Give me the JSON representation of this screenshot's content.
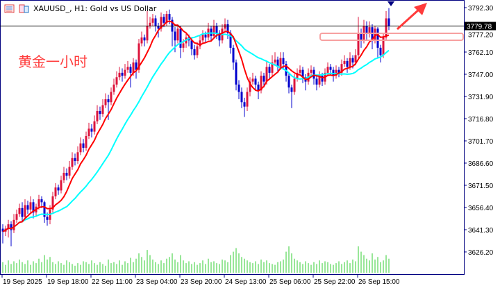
{
  "window": {
    "title": "XAUUSD_, H1:  Gold vs US Dollar",
    "icons": [
      "chart-list-icon",
      "chart-properties-icon"
    ]
  },
  "annotation": {
    "text": "黄金一小时",
    "arrow_color": "#ff3b3b",
    "box_color": "#f7a0a0"
  },
  "chart_data": {
    "type": "candlestick",
    "symbol": "XAUUSD_",
    "timeframe": "H1",
    "title": "XAUUSD_, H1:  Gold vs US Dollar",
    "ylim": [
      3621,
      3814
    ],
    "y_ticks": [
      "3792.30",
      "3777.20",
      "3762.10",
      "3747.00",
      "3731.90",
      "3716.80",
      "3701.70",
      "3686.60",
      "3671.50",
      "3656.40",
      "3641.30",
      "3626.20"
    ],
    "x_ticks": [
      {
        "label": "19 Sep 2025",
        "index": 0
      },
      {
        "label": "19 Sep 18:00",
        "index": 16
      },
      {
        "label": "22 Sep 11:00",
        "index": 32
      },
      {
        "label": "23 Sep 04:00",
        "index": 48
      },
      {
        "label": "23 Sep 20:00",
        "index": 64
      },
      {
        "label": "24 Sep 13:00",
        "index": 80
      },
      {
        "label": "25 Sep 06:00",
        "index": 96
      },
      {
        "label": "25 Sep 22:00",
        "index": 112
      },
      {
        "label": "26 Sep 15:00",
        "index": 128
      }
    ],
    "current_price": "3779.78",
    "grid": false,
    "colors": {
      "bull": "#dc143c",
      "bear": "#0000cd",
      "volume": "#32cd32",
      "ma_fast": "#ff0000",
      "ma_slow": "#00ffff",
      "price_line": "#000000"
    },
    "indicators": [
      {
        "type": "moving-average",
        "period": 8,
        "color": "#ff0000"
      },
      {
        "type": "moving-average",
        "period": 24,
        "color": "#00ffff"
      }
    ],
    "ohlc": [
      [
        3642,
        3645,
        3632,
        3640
      ],
      [
        3640,
        3644,
        3637,
        3642
      ],
      [
        3642,
        3648,
        3636,
        3645
      ],
      [
        3645,
        3647,
        3630,
        3641
      ],
      [
        3641,
        3652,
        3639,
        3648
      ],
      [
        3648,
        3655,
        3646,
        3652
      ],
      [
        3652,
        3659,
        3650,
        3656
      ],
      [
        3656,
        3660,
        3647,
        3650
      ],
      [
        3650,
        3662,
        3648,
        3658
      ],
      [
        3658,
        3661,
        3652,
        3655
      ],
      [
        3655,
        3664,
        3653,
        3660
      ],
      [
        3660,
        3662,
        3649,
        3653
      ],
      [
        3653,
        3659,
        3650,
        3657
      ],
      [
        3657,
        3665,
        3655,
        3662
      ],
      [
        3662,
        3664,
        3656,
        3660
      ],
      [
        3660,
        3661,
        3646,
        3650
      ],
      [
        3650,
        3653,
        3644,
        3648
      ],
      [
        3648,
        3658,
        3645,
        3655
      ],
      [
        3655,
        3667,
        3653,
        3664
      ],
      [
        3664,
        3673,
        3662,
        3670
      ],
      [
        3670,
        3672,
        3665,
        3668
      ],
      [
        3668,
        3678,
        3666,
        3675
      ],
      [
        3675,
        3684,
        3673,
        3680
      ],
      [
        3680,
        3683,
        3675,
        3678
      ],
      [
        3678,
        3688,
        3676,
        3684
      ],
      [
        3684,
        3694,
        3682,
        3690
      ],
      [
        3690,
        3693,
        3685,
        3688
      ],
      [
        3688,
        3698,
        3686,
        3694
      ],
      [
        3694,
        3704,
        3692,
        3700
      ],
      [
        3700,
        3703,
        3694,
        3697
      ],
      [
        3697,
        3708,
        3695,
        3705
      ],
      [
        3705,
        3714,
        3703,
        3710
      ],
      [
        3710,
        3713,
        3704,
        3708
      ],
      [
        3708,
        3719,
        3706,
        3715
      ],
      [
        3715,
        3726,
        3713,
        3722
      ],
      [
        3722,
        3725,
        3716,
        3720
      ],
      [
        3720,
        3730,
        3718,
        3726
      ],
      [
        3726,
        3734,
        3724,
        3730
      ],
      [
        3730,
        3733,
        3716,
        3728
      ],
      [
        3728,
        3738,
        3726,
        3735
      ],
      [
        3735,
        3744,
        3733,
        3740
      ],
      [
        3740,
        3749,
        3738,
        3745
      ],
      [
        3745,
        3752,
        3743,
        3748
      ],
      [
        3748,
        3751,
        3742,
        3746
      ],
      [
        3746,
        3754,
        3744,
        3750
      ],
      [
        3750,
        3756,
        3748,
        3752
      ],
      [
        3752,
        3754,
        3738,
        3748
      ],
      [
        3748,
        3758,
        3746,
        3755
      ],
      [
        3755,
        3757,
        3744,
        3750
      ],
      [
        3750,
        3771,
        3748,
        3768
      ],
      [
        3768,
        3776,
        3766,
        3772
      ],
      [
        3772,
        3774,
        3766,
        3770
      ],
      [
        3770,
        3790,
        3768,
        3780
      ],
      [
        3780,
        3786,
        3778,
        3782
      ],
      [
        3782,
        3788,
        3780,
        3785
      ],
      [
        3785,
        3787,
        3776,
        3780
      ],
      [
        3780,
        3782,
        3772,
        3778
      ],
      [
        3778,
        3789,
        3776,
        3786
      ],
      [
        3786,
        3788,
        3779,
        3782
      ],
      [
        3782,
        3790,
        3780,
        3788
      ],
      [
        3788,
        3791,
        3781,
        3784
      ],
      [
        3784,
        3786,
        3766,
        3776
      ],
      [
        3776,
        3779,
        3762,
        3770
      ],
      [
        3770,
        3781,
        3768,
        3778
      ],
      [
        3778,
        3780,
        3758,
        3765
      ],
      [
        3765,
        3771,
        3762,
        3768
      ],
      [
        3768,
        3775,
        3765,
        3772
      ],
      [
        3772,
        3774,
        3766,
        3770
      ],
      [
        3770,
        3772,
        3760,
        3764
      ],
      [
        3764,
        3767,
        3757,
        3760
      ],
      [
        3760,
        3769,
        3758,
        3766
      ],
      [
        3766,
        3773,
        3764,
        3770
      ],
      [
        3770,
        3777,
        3768,
        3774
      ],
      [
        3774,
        3776,
        3768,
        3772
      ],
      [
        3772,
        3782,
        3770,
        3778
      ],
      [
        3778,
        3780,
        3770,
        3773
      ],
      [
        3773,
        3784,
        3771,
        3780
      ],
      [
        3780,
        3782,
        3771,
        3775
      ],
      [
        3775,
        3777,
        3766,
        3770
      ],
      [
        3770,
        3781,
        3768,
        3778
      ],
      [
        3778,
        3785,
        3776,
        3781
      ],
      [
        3781,
        3784,
        3771,
        3775
      ],
      [
        3775,
        3777,
        3761,
        3765
      ],
      [
        3765,
        3767,
        3750,
        3755
      ],
      [
        3755,
        3757,
        3736,
        3740
      ],
      [
        3740,
        3743,
        3730,
        3735
      ],
      [
        3735,
        3738,
        3724,
        3728
      ],
      [
        3728,
        3731,
        3718,
        3725
      ],
      [
        3725,
        3738,
        3722,
        3735
      ],
      [
        3735,
        3745,
        3732,
        3742
      ],
      [
        3742,
        3748,
        3740,
        3744
      ],
      [
        3744,
        3746,
        3736,
        3740
      ],
      [
        3740,
        3742,
        3730,
        3736
      ],
      [
        3736,
        3749,
        3734,
        3746
      ],
      [
        3746,
        3748,
        3738,
        3742
      ],
      [
        3742,
        3756,
        3740,
        3752
      ],
      [
        3752,
        3754,
        3744,
        3748
      ],
      [
        3748,
        3760,
        3746,
        3755
      ],
      [
        3755,
        3762,
        3753,
        3757
      ],
      [
        3757,
        3759,
        3748,
        3752
      ],
      [
        3752,
        3762,
        3750,
        3758
      ],
      [
        3758,
        3762,
        3750,
        3754
      ],
      [
        3754,
        3756,
        3742,
        3746
      ],
      [
        3746,
        3748,
        3734,
        3738
      ],
      [
        3738,
        3740,
        3724,
        3735
      ],
      [
        3735,
        3747,
        3733,
        3744
      ],
      [
        3744,
        3751,
        3742,
        3748
      ],
      [
        3748,
        3753,
        3746,
        3750
      ],
      [
        3750,
        3752,
        3741,
        3745
      ],
      [
        3745,
        3747,
        3736,
        3742
      ],
      [
        3742,
        3751,
        3740,
        3748
      ],
      [
        3748,
        3753,
        3746,
        3750
      ],
      [
        3750,
        3752,
        3740,
        3744
      ],
      [
        3744,
        3746,
        3736,
        3740
      ],
      [
        3740,
        3749,
        3738,
        3746
      ],
      [
        3746,
        3748,
        3739,
        3742
      ],
      [
        3742,
        3751,
        3740,
        3748
      ],
      [
        3748,
        3755,
        3746,
        3752
      ],
      [
        3752,
        3754,
        3746,
        3750
      ],
      [
        3750,
        3752,
        3742,
        3746
      ],
      [
        3746,
        3753,
        3744,
        3750
      ],
      [
        3750,
        3752,
        3745,
        3748
      ],
      [
        3748,
        3757,
        3746,
        3754
      ],
      [
        3754,
        3760,
        3752,
        3756
      ],
      [
        3756,
        3758,
        3748,
        3752
      ],
      [
        3752,
        3762,
        3750,
        3758
      ],
      [
        3758,
        3760,
        3751,
        3755
      ],
      [
        3755,
        3764,
        3753,
        3760
      ],
      [
        3760,
        3786,
        3758,
        3775
      ],
      [
        3775,
        3778,
        3765,
        3770
      ],
      [
        3770,
        3784,
        3768,
        3780
      ],
      [
        3780,
        3783,
        3770,
        3775
      ],
      [
        3775,
        3783,
        3772,
        3779
      ],
      [
        3779,
        3781,
        3764,
        3770
      ],
      [
        3770,
        3780,
        3768,
        3778
      ],
      [
        3778,
        3779,
        3758,
        3765
      ],
      [
        3765,
        3767,
        3755,
        3760
      ],
      [
        3760,
        3775,
        3758,
        3772
      ],
      [
        3772,
        3790,
        3770,
        3785
      ],
      [
        3785,
        3792,
        3777,
        3779.78
      ]
    ],
    "volume": [
      12,
      9,
      14,
      10,
      13,
      11,
      15,
      12,
      10,
      14,
      9,
      13,
      11,
      16,
      12,
      20,
      15,
      18,
      12,
      10,
      13,
      11,
      9,
      14,
      12,
      10,
      8,
      11,
      9,
      13,
      12,
      10,
      14,
      11,
      9,
      12,
      10,
      8,
      15,
      11,
      12,
      10,
      14,
      9,
      13,
      11,
      17,
      12,
      16,
      22,
      18,
      14,
      26,
      20,
      15,
      12,
      10,
      14,
      11,
      16,
      18,
      22,
      15,
      12,
      20,
      14,
      11,
      13,
      10,
      12,
      9,
      11,
      14,
      10,
      16,
      12,
      13,
      11,
      10,
      15,
      14,
      12,
      20,
      24,
      28,
      22,
      18,
      16,
      14,
      12,
      11,
      13,
      10,
      15,
      12,
      14,
      11,
      10,
      9,
      12,
      13,
      15,
      24,
      30,
      22,
      16,
      14,
      12,
      10,
      13,
      11,
      9,
      12,
      10,
      14,
      11,
      13,
      12,
      10,
      9,
      11,
      13,
      10,
      12,
      14,
      11,
      15,
      13,
      30,
      24,
      20,
      16,
      14,
      22,
      15,
      18,
      12,
      14,
      20,
      16
    ]
  }
}
